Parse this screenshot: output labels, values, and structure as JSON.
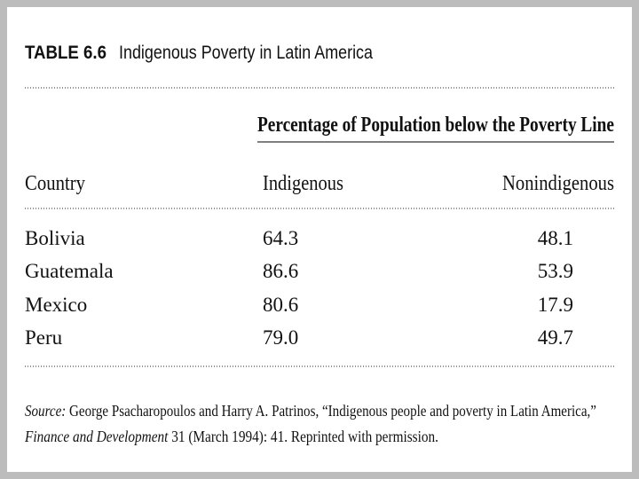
{
  "header": {
    "label": "TABLE 6.6",
    "title": "Indigenous Poverty in Latin America"
  },
  "table": {
    "spanner": "Percentage of Population below the Poverty Line",
    "columns": [
      "Country",
      "Indigenous",
      "Nonindigenous"
    ],
    "rows": [
      [
        "Bolivia",
        "64.3",
        "48.1"
      ],
      [
        "Guatemala",
        "86.6",
        "53.9"
      ],
      [
        "Mexico",
        "80.6",
        "17.9"
      ],
      [
        "Peru",
        "79.0",
        "49.7"
      ]
    ]
  },
  "source": {
    "label": "Source:",
    "line1": "George Psacharopoulos and Harry A. Patrinos, “Indigenous people and poverty in Latin America,”",
    "journal": "Finance and Development",
    "line2": "31 (March 1994): 41. Reprinted with permission."
  }
}
